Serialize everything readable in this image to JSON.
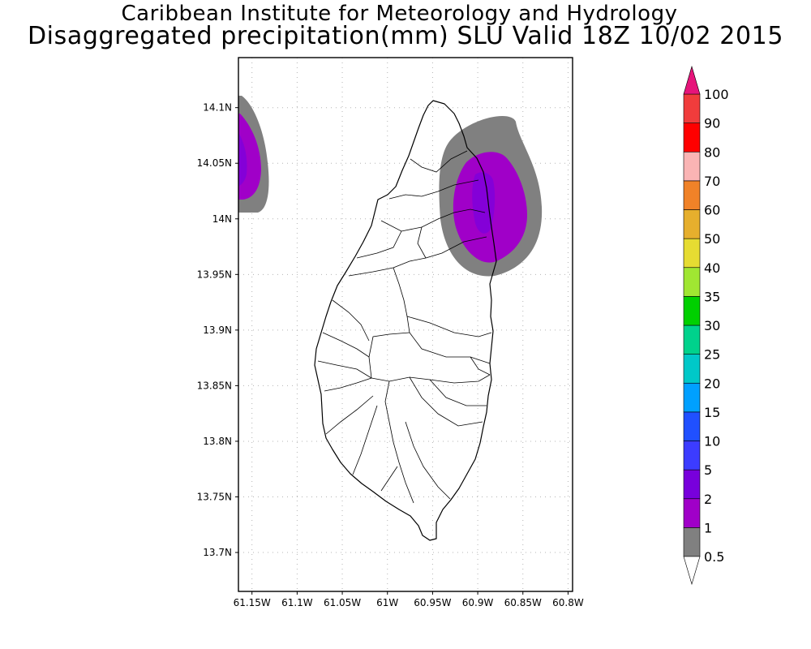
{
  "header": {
    "line1": "Caribbean Institute for Meteorology and Hydrology",
    "line2": "Disaggregated precipitation(mm) SLU Valid 18Z 10/02 2015"
  },
  "map": {
    "region": "Saint Lucia",
    "lon_range": [
      -61.165,
      -60.795
    ],
    "lat_range": [
      13.665,
      14.145
    ],
    "lat_ticks": [
      {
        "value": 14.1,
        "label": "14.1N"
      },
      {
        "value": 14.05,
        "label": "14.05N"
      },
      {
        "value": 14.0,
        "label": "14N"
      },
      {
        "value": 13.95,
        "label": "13.95N"
      },
      {
        "value": 13.9,
        "label": "13.9N"
      },
      {
        "value": 13.85,
        "label": "13.85N"
      },
      {
        "value": 13.8,
        "label": "13.8N"
      },
      {
        "value": 13.75,
        "label": "13.75N"
      },
      {
        "value": 13.7,
        "label": "13.7N"
      }
    ],
    "lon_ticks": [
      {
        "value": -61.15,
        "label": "61.15W"
      },
      {
        "value": -61.1,
        "label": "61.1W"
      },
      {
        "value": -61.05,
        "label": "61.05W"
      },
      {
        "value": -61.0,
        "label": "61W"
      },
      {
        "value": -60.95,
        "label": "60.95W"
      },
      {
        "value": -60.9,
        "label": "60.9W"
      },
      {
        "value": -60.85,
        "label": "60.85W"
      },
      {
        "value": -60.8,
        "label": "60.8W"
      }
    ],
    "grid": "dotted",
    "precip_areas": [
      {
        "location": "northeast coast",
        "center_lon": -60.87,
        "center_lat": 14.025,
        "max_class_mm": "2-5"
      },
      {
        "location": "northwest edge",
        "center_lon": -61.165,
        "center_lat": 14.055,
        "max_class_mm": "2-5"
      }
    ]
  },
  "colorbar": {
    "levels": [
      "0.5",
      "1",
      "2",
      "5",
      "10",
      "15",
      "20",
      "25",
      "30",
      "35",
      "40",
      "50",
      "60",
      "70",
      "80",
      "90",
      "100"
    ],
    "colors": [
      "#808080",
      "#a000c8",
      "#7800dc",
      "#3c3cff",
      "#2050ff",
      "#00a0ff",
      "#00c8c8",
      "#00d28c",
      "#00d000",
      "#a0e632",
      "#e6dc32",
      "#e6af2d",
      "#f08228",
      "#fab4b4",
      "#ff0000",
      "#f03c3c",
      "#e6147a"
    ],
    "under_color": "#ffffff",
    "over_color": "#e6147a"
  }
}
